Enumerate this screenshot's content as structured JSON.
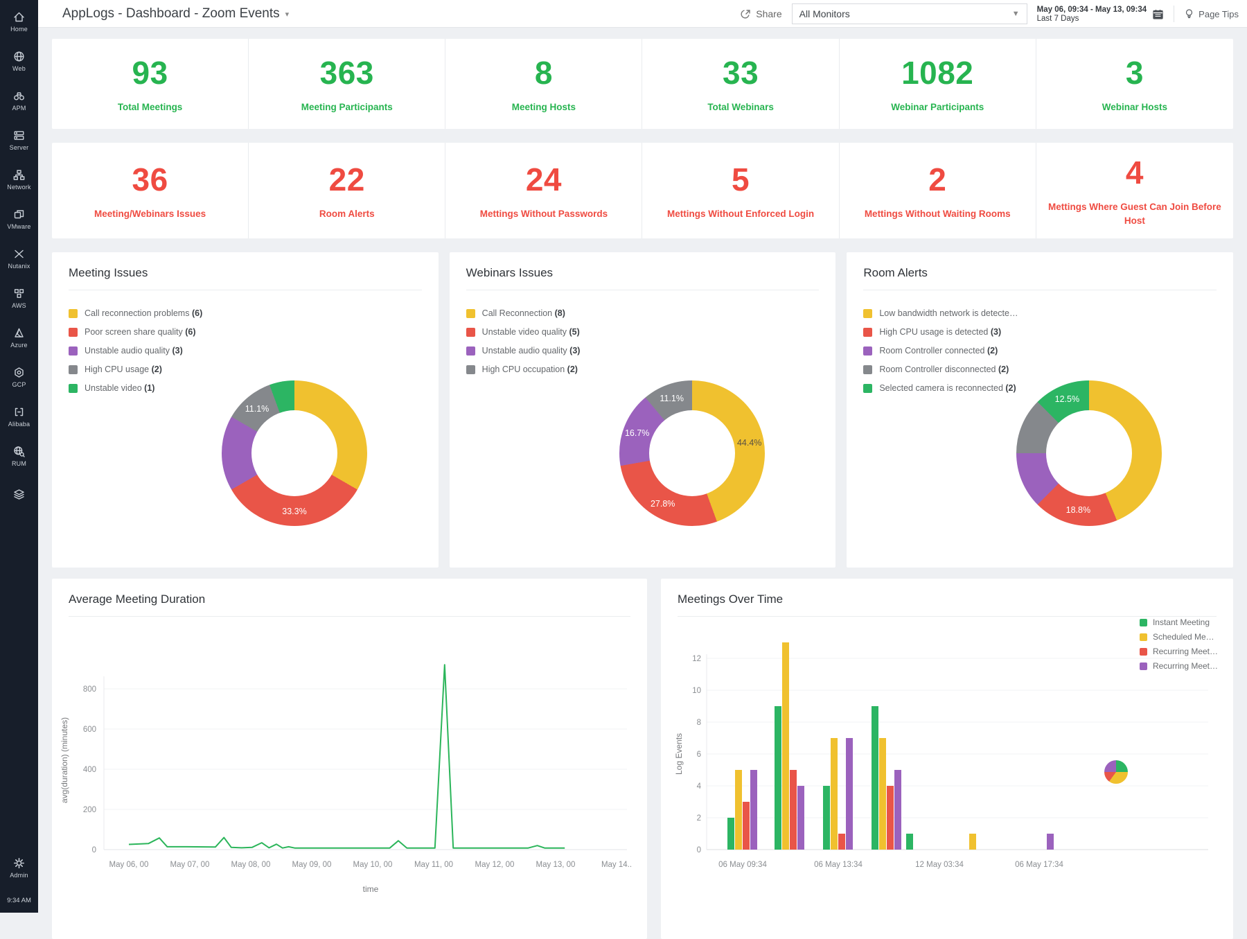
{
  "sidebar": {
    "items": [
      {
        "id": "home",
        "icon": "home-icon",
        "label": "Home"
      },
      {
        "id": "web",
        "icon": "globe-icon",
        "label": "Web"
      },
      {
        "id": "apm",
        "icon": "binoculars-icon",
        "label": "APM"
      },
      {
        "id": "server",
        "icon": "server-icon",
        "label": "Server"
      },
      {
        "id": "network",
        "icon": "network-icon",
        "label": "Network"
      },
      {
        "id": "vmware",
        "icon": "vmware-icon",
        "label": "VMware"
      },
      {
        "id": "nutanix",
        "icon": "nutanix-icon",
        "label": "Nutanix"
      },
      {
        "id": "aws",
        "icon": "aws-icon",
        "label": "AWS"
      },
      {
        "id": "azure",
        "icon": "azure-icon",
        "label": "Azure"
      },
      {
        "id": "gcp",
        "icon": "gcp-icon",
        "label": "GCP"
      },
      {
        "id": "alibaba",
        "icon": "alibaba-icon",
        "label": "Alibaba"
      },
      {
        "id": "rum",
        "icon": "rum-icon",
        "label": "RUM"
      },
      {
        "id": "applogs",
        "icon": "layers-icon",
        "label": ""
      }
    ],
    "bottom": {
      "id": "admin",
      "icon": "gear-icon",
      "label": "Admin",
      "time": "9:34 AM"
    }
  },
  "header": {
    "title": "AppLogs - Dashboard - Zoom Events",
    "share": "Share",
    "monitors": "All Monitors",
    "date_range": "May 06, 09:34 - May 13, 09:34",
    "date_preset": "Last 7 Days",
    "page_tips": "Page Tips"
  },
  "stats_top": [
    {
      "value": "93",
      "label": "Total Meetings"
    },
    {
      "value": "363",
      "label": "Meeting Participants"
    },
    {
      "value": "8",
      "label": "Meeting Hosts"
    },
    {
      "value": "33",
      "label": "Total Webinars"
    },
    {
      "value": "1082",
      "label": "Webinar Participants"
    },
    {
      "value": "3",
      "label": "Webinar Hosts"
    }
  ],
  "stats_alerts": [
    {
      "value": "36",
      "label": "Meeting/Webinars Issues"
    },
    {
      "value": "22",
      "label": "Room Alerts"
    },
    {
      "value": "24",
      "label": "Mettings Without Passwords"
    },
    {
      "value": "5",
      "label": "Mettings Without Enforced Login"
    },
    {
      "value": "2",
      "label": "Mettings Without Waiting Rooms"
    },
    {
      "value": "4",
      "label": "Mettings Where Guest Can Join Before Host"
    }
  ],
  "colors": {
    "stat_green": "#27b450",
    "stat_red": "#ef4b41",
    "yellow": "#f0c12f",
    "red": "#e95548",
    "purple": "#9b62bd",
    "gray": "#85888c",
    "green": "#2cb563",
    "line_green": "#2bb55a",
    "sidebar_bg": "#171e2a"
  },
  "donut_panels": [
    {
      "title": "Meeting Issues",
      "type": "donut",
      "slices": [
        {
          "label": "Call reconnection problems",
          "count": "6",
          "value": 6,
          "color": "#f0c12f",
          "pct": ""
        },
        {
          "label": "Poor screen share quality",
          "count": "6",
          "value": 6,
          "color": "#e95548",
          "pct": "33.3%"
        },
        {
          "label": "Unstable audio quality",
          "count": "3",
          "value": 3,
          "color": "#9b62bd",
          "pct": ""
        },
        {
          "label": "High CPU usage",
          "count": "2",
          "value": 2,
          "color": "#85888c",
          "pct": "11.1%"
        },
        {
          "label": "Unstable video",
          "count": "1",
          "value": 1,
          "color": "#2cb563",
          "pct": ""
        }
      ]
    },
    {
      "title": "Webinars Issues",
      "type": "donut",
      "slices": [
        {
          "label": "Call Reconnection",
          "count": "8",
          "value": 8,
          "color": "#f0c12f",
          "pct": "44.4%"
        },
        {
          "label": "Unstable video quality",
          "count": "5",
          "value": 5,
          "color": "#e95548",
          "pct": "27.8%"
        },
        {
          "label": "Unstable audio quality",
          "count": "3",
          "value": 3,
          "color": "#9b62bd",
          "pct": "16.7%"
        },
        {
          "label": "High CPU occupation",
          "count": "2",
          "value": 2,
          "color": "#85888c",
          "pct": "11.1%"
        }
      ]
    },
    {
      "title": "Room Alerts",
      "type": "donut",
      "slices": [
        {
          "label": "Low bandwidth network is detecte…",
          "count": "",
          "value": 7,
          "color": "#f0c12f",
          "pct": ""
        },
        {
          "label": "High CPU usage is detected",
          "count": "3",
          "value": 3,
          "color": "#e95548",
          "pct": "18.8%"
        },
        {
          "label": "Room Controller connected",
          "count": "2",
          "value": 2,
          "color": "#9b62bd",
          "pct": ""
        },
        {
          "label": "Room Controller disconnected",
          "count": "2",
          "value": 2,
          "color": "#85888c",
          "pct": ""
        },
        {
          "label": "Selected camera is reconnected",
          "count": "2",
          "value": 2,
          "color": "#2cb563",
          "pct": "12.5%"
        }
      ]
    }
  ],
  "duration_chart": {
    "title": "Average Meeting Duration",
    "type": "line",
    "ylabel": "avg(duration) (minutes)",
    "xlabel": "time",
    "yticks": [
      0,
      200,
      400,
      600,
      800
    ],
    "xticks": [
      "May 06, 00",
      "May 07, 00",
      "May 08, 00",
      "May 09, 00",
      "May 10, 00",
      "May 11, 00",
      "May 12, 00",
      "May 13, 00",
      "May 14.."
    ],
    "line_color": "#2bb55a",
    "points": [
      [
        0,
        26
      ],
      [
        0.32,
        30
      ],
      [
        0.5,
        58
      ],
      [
        0.63,
        14
      ],
      [
        0.95,
        14
      ],
      [
        1.42,
        13
      ],
      [
        1.56,
        60
      ],
      [
        1.68,
        11
      ],
      [
        1.85,
        9
      ],
      [
        2.02,
        11
      ],
      [
        2.18,
        34
      ],
      [
        2.3,
        9
      ],
      [
        2.42,
        27
      ],
      [
        2.52,
        8
      ],
      [
        2.62,
        14
      ],
      [
        2.72,
        8
      ],
      [
        3.2,
        8
      ],
      [
        4.28,
        8
      ],
      [
        4.42,
        44
      ],
      [
        4.56,
        8
      ],
      [
        5.02,
        8
      ],
      [
        5.18,
        920
      ],
      [
        5.32,
        8
      ],
      [
        5.9,
        8
      ],
      [
        6.55,
        8
      ],
      [
        6.7,
        20
      ],
      [
        6.82,
        8
      ],
      [
        7.15,
        8
      ]
    ]
  },
  "meetings_chart": {
    "title": "Meetings Over Time",
    "type": "bar",
    "ylabel": "Log Events",
    "yticks": [
      0,
      2,
      4,
      6,
      8,
      10,
      12
    ],
    "legend": [
      "Instant Meeting",
      "Scheduled Me…",
      "Recurring Meet…",
      "Recurring Meet…"
    ],
    "colors": [
      "#2cb563",
      "#f0c12f",
      "#e95548",
      "#9b62bd"
    ],
    "groups": [
      [
        2,
        5,
        3,
        5
      ],
      [
        9,
        13,
        5,
        4
      ],
      [
        4,
        7,
        1,
        7
      ],
      [
        9,
        7,
        4,
        5
      ],
      [
        1,
        0,
        0,
        0
      ],
      [
        0,
        1,
        0,
        0
      ],
      [
        0,
        0,
        0,
        1
      ]
    ],
    "xticks": [
      "06 May 09:34",
      "06 May 13:34",
      "12 May 03:34",
      "06 May 17:34"
    ],
    "mini_pie": [
      25,
      35,
      15,
      25
    ]
  }
}
